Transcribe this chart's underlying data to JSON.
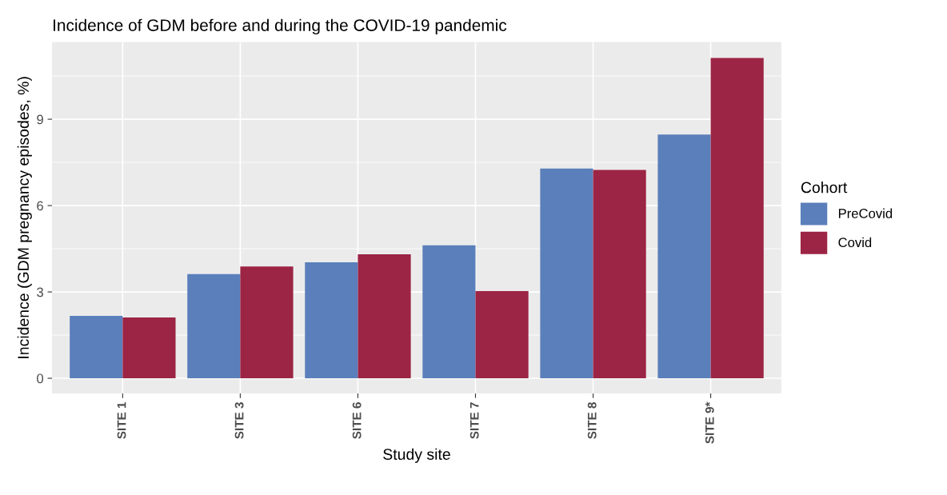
{
  "chart_data": {
    "type": "bar",
    "title": "Incidence of GDM before and during the COVID-19 pandemic",
    "xlabel": "Study site",
    "ylabel": "Incidence (GDM pregnancy episodes, %)",
    "legend_title": "Cohort",
    "categories": [
      "SITE 1",
      "SITE 3",
      "SITE 6",
      "SITE 7",
      "SITE 8",
      "SITE 9*"
    ],
    "series": [
      {
        "name": "PreCovid",
        "color": "#5a7fbb",
        "values": [
          2.17,
          3.62,
          4.03,
          4.62,
          7.29,
          8.47
        ]
      },
      {
        "name": "Covid",
        "color": "#9c2444",
        "values": [
          2.11,
          3.88,
          4.31,
          3.03,
          7.24,
          11.13
        ]
      }
    ],
    "ylim": [
      -0.53,
      11.68
    ],
    "yticks": [
      0,
      3,
      6,
      9
    ],
    "grid": true,
    "legend": "right"
  }
}
